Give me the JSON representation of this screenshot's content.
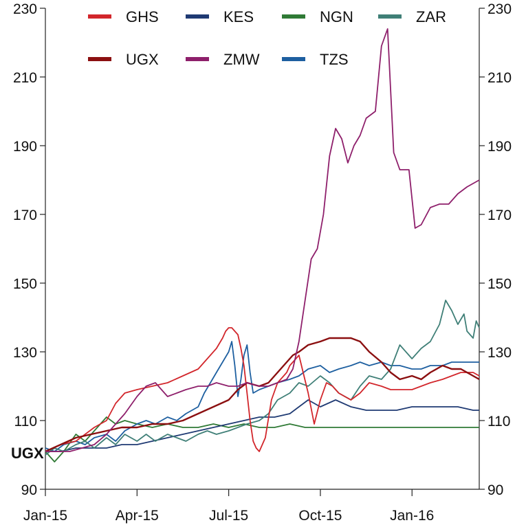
{
  "chart_data": {
    "type": "line",
    "x_ticks": [
      "Jan-15",
      "Apr-15",
      "Jul-15",
      "Oct-15",
      "Jan-16"
    ],
    "y_ticks": [
      90,
      110,
      130,
      150,
      170,
      190,
      210,
      230
    ],
    "ylim": [
      90,
      230
    ],
    "xlim": [
      0,
      14.2
    ],
    "legend_position": "top",
    "series_label": "UGX",
    "grid": false,
    "series": [
      {
        "name": "GHS",
        "color": "#d2262b",
        "x": [
          0,
          0.5,
          1,
          1.3,
          1.6,
          2,
          2.3,
          2.6,
          3,
          3.5,
          4,
          4.5,
          5,
          5.3,
          5.6,
          5.8,
          5.9,
          6,
          6.1,
          6.2,
          6.3,
          6.4,
          6.5,
          6.6,
          6.7,
          6.8,
          6.9,
          7,
          7.2,
          7.4,
          7.6,
          7.8,
          7.9,
          8,
          8.1,
          8.3,
          8.6,
          8.8,
          9,
          9.2,
          9.4,
          9.6,
          9.8,
          10,
          10.3,
          10.6,
          11,
          11.3,
          11.6,
          12,
          12.3,
          12.6,
          13,
          13.3,
          13.6,
          13.8,
          14,
          14.2
        ],
        "values": [
          101,
          103,
          104,
          106,
          108,
          110,
          115,
          118,
          119,
          120,
          121,
          123,
          125,
          128,
          131,
          134,
          136,
          137,
          137,
          136,
          135,
          131,
          126,
          118,
          110,
          104,
          102,
          101,
          105,
          116,
          121,
          123,
          124,
          126,
          127,
          129,
          118,
          109,
          116,
          121,
          120,
          118,
          117,
          116,
          118,
          121,
          120,
          119,
          119,
          119,
          120,
          121,
          122,
          123,
          124,
          124,
          124,
          123
        ]
      },
      {
        "name": "KES",
        "color": "#1f3a73",
        "x": [
          0,
          0.5,
          1,
          1.5,
          2,
          2.5,
          3,
          3.5,
          4,
          4.5,
          5,
          5.5,
          6,
          6.5,
          7,
          7.5,
          8,
          8.3,
          8.6,
          9,
          9.5,
          10,
          10.5,
          11,
          11.5,
          12,
          12.5,
          13,
          13.5,
          14,
          14.2
        ],
        "values": [
          101,
          101,
          102,
          102,
          102,
          103,
          103,
          104,
          105,
          106,
          107,
          108,
          109,
          110,
          111,
          111,
          112,
          114,
          116,
          114,
          116,
          114,
          113,
          113,
          113,
          114,
          114,
          114,
          114,
          113,
          113
        ]
      },
      {
        "name": "NGN",
        "color": "#2f7a35",
        "x": [
          0,
          0.3,
          0.6,
          1,
          1.3,
          1.6,
          2,
          2.3,
          2.6,
          3,
          3.5,
          4,
          4.5,
          5,
          5.5,
          6,
          6.5,
          7,
          7.5,
          8,
          8.5,
          9,
          9.5,
          10,
          10.5,
          11,
          11.5,
          12,
          12.5,
          13,
          13.5,
          14,
          14.2
        ],
        "values": [
          101,
          98,
          101,
          106,
          104,
          107,
          111,
          109,
          110,
          109,
          108,
          109,
          108,
          108,
          109,
          108,
          109,
          108,
          108,
          109,
          108,
          108,
          108,
          108,
          108,
          108,
          108,
          108,
          108,
          108,
          108,
          108,
          108
        ]
      },
      {
        "name": "ZAR",
        "color": "#3f7f77",
        "x": [
          0,
          0.3,
          0.6,
          1,
          1.3,
          1.6,
          2,
          2.3,
          2.6,
          3,
          3.3,
          3.6,
          4,
          4.3,
          4.6,
          5,
          5.3,
          5.6,
          6,
          6.3,
          6.6,
          7,
          7.3,
          7.6,
          8,
          8.3,
          8.6,
          9,
          9.3,
          9.6,
          10,
          10.3,
          10.6,
          11,
          11.3,
          11.6,
          12,
          12.3,
          12.6,
          12.9,
          13.1,
          13.3,
          13.5,
          13.7,
          13.8,
          14,
          14.1,
          14.2
        ],
        "values": [
          100,
          102,
          101,
          103,
          104,
          102,
          105,
          103,
          106,
          104,
          106,
          104,
          106,
          105,
          104,
          106,
          107,
          106,
          107,
          108,
          109,
          110,
          112,
          116,
          118,
          121,
          120,
          123,
          121,
          118,
          116,
          120,
          123,
          122,
          125,
          132,
          128,
          131,
          133,
          138,
          145,
          142,
          138,
          141,
          136,
          134,
          139,
          137
        ]
      },
      {
        "name": "UGX",
        "color": "#8b0f10",
        "x": [
          0,
          0.5,
          1,
          1.5,
          2,
          2.5,
          3,
          3.5,
          4,
          4.5,
          5,
          5.5,
          6,
          6.3,
          6.6,
          7,
          7.3,
          7.6,
          7.9,
          8.1,
          8.3,
          8.6,
          9,
          9.3,
          9.6,
          10,
          10.3,
          10.6,
          11,
          11.3,
          11.6,
          12,
          12.3,
          12.6,
          13,
          13.3,
          13.6,
          14,
          14.2
        ],
        "values": [
          101,
          103,
          105,
          106,
          107,
          108,
          108,
          109,
          109,
          110,
          112,
          114,
          116,
          119,
          121,
          120,
          121,
          124,
          127,
          129,
          130,
          132,
          133,
          134,
          134,
          134,
          133,
          130,
          127,
          124,
          122,
          123,
          122,
          124,
          126,
          125,
          125,
          123,
          122
        ]
      },
      {
        "name": "ZMW",
        "color": "#8e1f6b",
        "x": [
          0,
          0.4,
          0.8,
          1.2,
          1.6,
          2,
          2.3,
          2.6,
          3,
          3.3,
          3.6,
          4,
          4.3,
          4.6,
          5,
          5.3,
          5.6,
          6,
          6.3,
          6.6,
          7,
          7.3,
          7.6,
          7.9,
          8.1,
          8.3,
          8.5,
          8.7,
          8.9,
          9.1,
          9.3,
          9.5,
          9.7,
          9.9,
          10.1,
          10.3,
          10.5,
          10.8,
          11,
          11.2,
          11.4,
          11.6,
          11.9,
          12.1,
          12.3,
          12.6,
          12.9,
          13.2,
          13.5,
          13.8,
          14,
          14.2
        ],
        "values": [
          101,
          101,
          101,
          102,
          103,
          106,
          109,
          112,
          117,
          120,
          121,
          117,
          118,
          119,
          120,
          120,
          121,
          120,
          120,
          121,
          120,
          120,
          121,
          122,
          125,
          133,
          145,
          157,
          160,
          170,
          187,
          195,
          192,
          185,
          190,
          193,
          198,
          200,
          219,
          224,
          188,
          183,
          183,
          166,
          167,
          172,
          173,
          173,
          176,
          178,
          179,
          180
        ]
      },
      {
        "name": "TZS",
        "color": "#1d5fa0",
        "x": [
          0,
          0.3,
          0.6,
          1,
          1.3,
          1.6,
          2,
          2.3,
          2.6,
          3,
          3.3,
          3.6,
          4,
          4.3,
          4.6,
          5,
          5.2,
          5.4,
          5.6,
          5.8,
          6,
          6.1,
          6.2,
          6.3,
          6.4,
          6.5,
          6.6,
          6.7,
          6.8,
          7,
          7.3,
          7.6,
          8,
          8.3,
          8.6,
          9,
          9.3,
          9.6,
          10,
          10.3,
          10.6,
          11,
          11.3,
          11.6,
          12,
          12.3,
          12.6,
          13,
          13.3,
          13.6,
          14,
          14.2
        ],
        "values": [
          102,
          101,
          103,
          104,
          103,
          105,
          106,
          104,
          107,
          109,
          110,
          109,
          111,
          110,
          112,
          114,
          118,
          121,
          124,
          127,
          130,
          133,
          126,
          117,
          122,
          129,
          132,
          124,
          118,
          119,
          120,
          121,
          122,
          123,
          125,
          126,
          124,
          125,
          126,
          127,
          126,
          127,
          126,
          126,
          125,
          125,
          126,
          126,
          127,
          127,
          127,
          127
        ]
      }
    ]
  }
}
